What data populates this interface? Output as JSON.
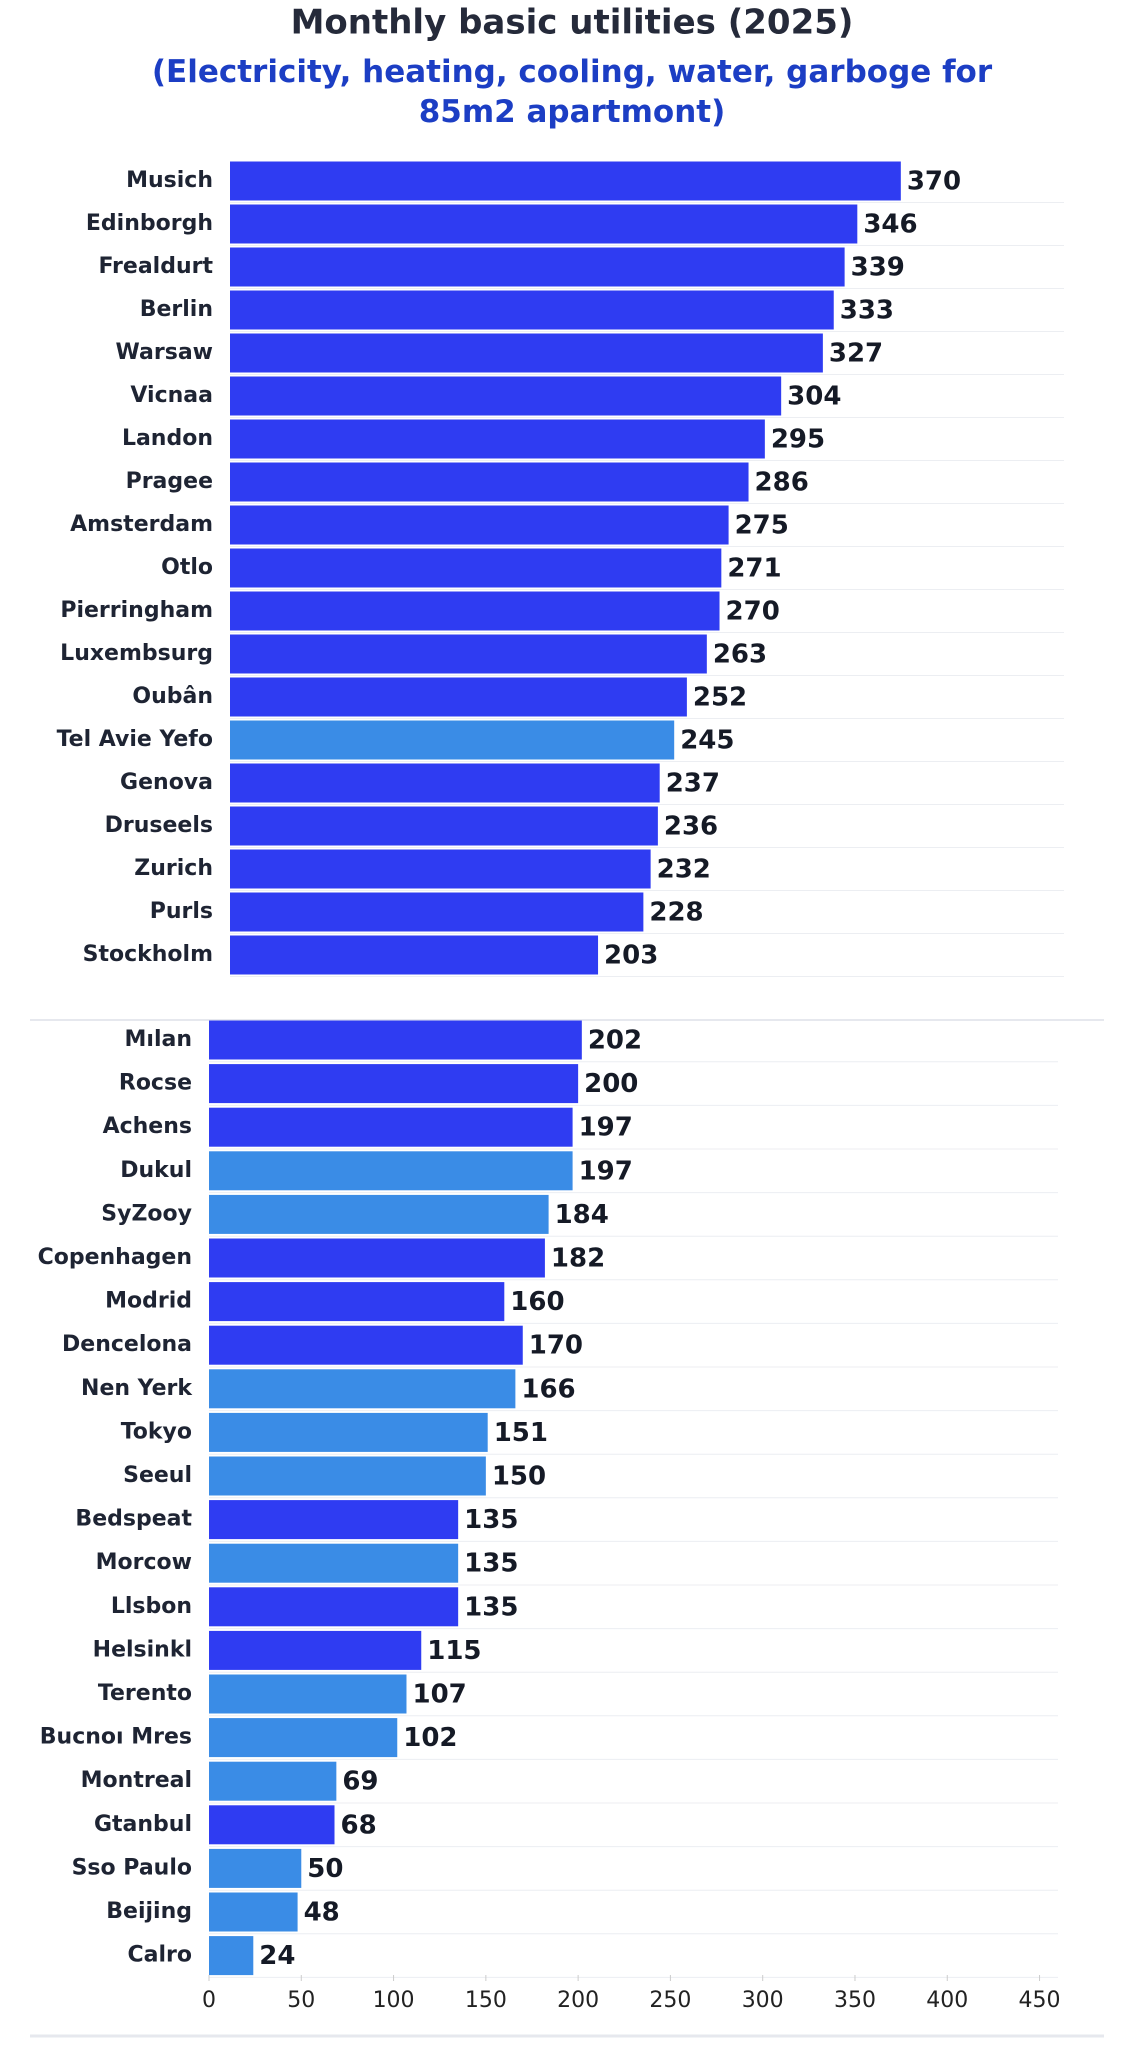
{
  "chart_data": [
    {
      "type": "barh",
      "title": "Monthly basic utilities (2025)",
      "subtitle": "(Electricity, heating, cooling, water, garboge for 85m2 apartmont)",
      "categories": [
        "Musich",
        "Edinborgh",
        "Frealdurt",
        "Berlin",
        "Warsaw",
        "Vicnaa",
        "Landon",
        "Pragee",
        "Amsterdam",
        "Otlo",
        "Pierringham",
        "Luxembsurg",
        "Oubân",
        "Tel Avie Yefo",
        "Genova",
        "Druseels",
        "Zurich",
        "Purls",
        "Stockholm"
      ],
      "values": [
        370,
        346,
        339,
        333,
        327,
        304,
        295,
        286,
        275,
        271,
        270,
        263,
        252,
        245,
        237,
        236,
        232,
        228,
        203
      ],
      "colors": [
        "#2f3cf2",
        "#2f3cf2",
        "#2f3cf2",
        "#2f3cf2",
        "#2f3cf2",
        "#2f3cf2",
        "#2f3cf2",
        "#2f3cf2",
        "#2f3cf2",
        "#2f3cf2",
        "#2f3cf2",
        "#2f3cf2",
        "#2f3cf2",
        "#3a8ce6",
        "#2f3cf2",
        "#2f3cf2",
        "#2f3cf2",
        "#2f3cf2",
        "#2f3cf2"
      ],
      "xlim": [
        0,
        460
      ]
    },
    {
      "type": "barh",
      "categories": [
        "Mılan",
        "Rocse",
        "Achens",
        "Dukul",
        "SyZoоy",
        "Copenhagen",
        "Modrid",
        "Dencelona",
        "Nen Yerk",
        "Tokyo",
        "Seeul",
        "Bedspeat",
        "Morcow",
        "Llsbon",
        "Helsinkl",
        "Terento",
        "Bucnoı Mres",
        "Montreal",
        "Gtanbul",
        "Sso Paulo",
        "Beijing",
        "Calro"
      ],
      "values": [
        202,
        200,
        197,
        197,
        184,
        182,
        160,
        170,
        166,
        151,
        150,
        135,
        135,
        135,
        115,
        107,
        102,
        69,
        68,
        50,
        48,
        24
      ],
      "colors": [
        "#2f3cf2",
        "#2f3cf2",
        "#2f3cf2",
        "#3a8ce6",
        "#3a8ce6",
        "#2f3cf2",
        "#2f3cf2",
        "#2f3cf2",
        "#3a8ce6",
        "#3a8ce6",
        "#3a8ce6",
        "#2f3cf2",
        "#3a8ce6",
        "#2f3cf2",
        "#2f3cf2",
        "#3a8ce6",
        "#3a8ce6",
        "#3a8ce6",
        "#2f3cf2",
        "#3a8ce6",
        "#3a8ce6",
        "#3a8ce6"
      ],
      "xlim": [
        0,
        460
      ],
      "xticks": [
        0,
        50,
        100,
        150,
        200,
        250,
        300,
        350,
        400,
        450
      ]
    }
  ]
}
